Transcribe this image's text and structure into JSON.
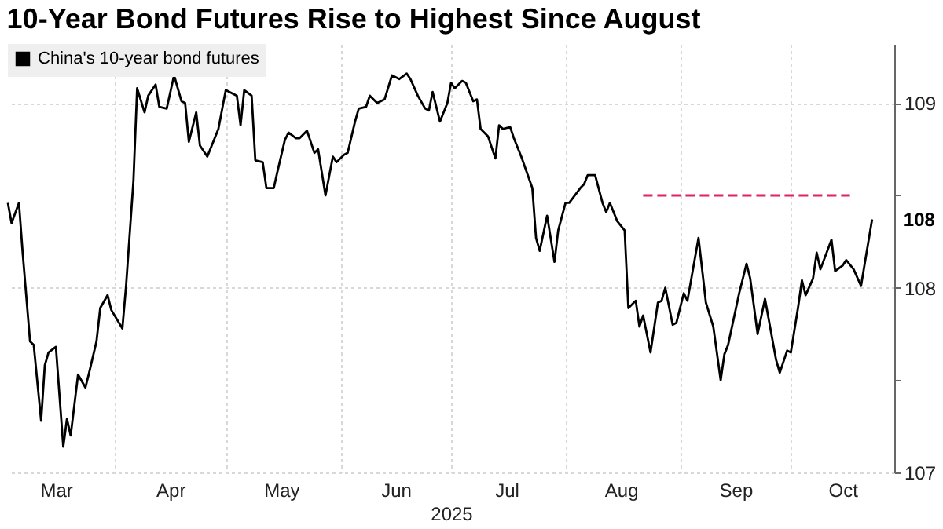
{
  "chart_data": {
    "type": "line",
    "title": "10-Year Bond Futures Rise to Highest Since August",
    "xlabel": "2025",
    "xlim": [
      "2025-03-03",
      "2025-10-29"
    ],
    "xticks": [
      {
        "value": "2025-04-01",
        "label": null
      },
      {
        "value": "2025-05-01",
        "label": null
      },
      {
        "value": "2025-06-01",
        "label": null
      },
      {
        "value": "2025-07-01",
        "label": null
      },
      {
        "value": "2025-08-01",
        "label": null
      },
      {
        "value": "2025-09-01",
        "label": null
      },
      {
        "value": "2025-10-01",
        "label": null
      },
      {
        "value": "2025-03-16",
        "label": "Mar"
      },
      {
        "value": "2025-04-16",
        "label": "Apr"
      },
      {
        "value": "2025-05-16",
        "label": "May"
      },
      {
        "value": "2025-06-16",
        "label": "Jun"
      },
      {
        "value": "2025-07-16",
        "label": "Jul"
      },
      {
        "value": "2025-08-16",
        "label": "Aug"
      },
      {
        "value": "2025-09-16",
        "label": "Sep"
      },
      {
        "value": "2025-10-15",
        "label": "Oct"
      }
    ],
    "ylim": [
      107,
      109.32
    ],
    "yticks": [
      107,
      {
        "value": 107.5,
        "label": null
      },
      108,
      {
        "value": 108.5,
        "label": null
      },
      109
    ],
    "grid": true,
    "legend": "top left",
    "series": [
      {
        "name": "China's 10-year bond futures",
        "color": "#000000",
        "x": [
          "2025-03-03",
          "2025-03-04",
          "2025-03-06",
          "2025-03-07",
          "2025-03-09",
          "2025-03-10",
          "2025-03-12",
          "2025-03-13",
          "2025-03-14",
          "2025-03-16",
          "2025-03-18",
          "2025-03-19",
          "2025-03-20",
          "2025-03-22",
          "2025-03-24",
          "2025-03-25",
          "2025-03-27",
          "2025-03-28",
          "2025-03-30",
          "2025-03-31",
          "2025-04-03",
          "2025-04-04",
          "2025-04-06",
          "2025-04-07",
          "2025-04-09",
          "2025-04-10",
          "2025-04-12",
          "2025-04-13",
          "2025-04-15",
          "2025-04-17",
          "2025-04-19",
          "2025-04-20",
          "2025-04-21",
          "2025-04-23",
          "2025-04-24",
          "2025-04-26",
          "2025-04-28",
          "2025-04-29",
          "2025-05-01",
          "2025-05-04",
          "2025-05-05",
          "2025-05-06",
          "2025-05-08",
          "2025-05-09",
          "2025-05-11",
          "2025-05-12",
          "2025-05-14",
          "2025-05-15",
          "2025-05-17",
          "2025-05-18",
          "2025-05-20",
          "2025-05-21",
          "2025-05-23",
          "2025-05-25",
          "2025-05-26",
          "2025-05-28",
          "2025-05-30",
          "2025-05-31",
          "2025-06-02",
          "2025-06-03",
          "2025-06-05",
          "2025-06-06",
          "2025-06-08",
          "2025-06-09",
          "2025-06-11",
          "2025-06-13",
          "2025-06-15",
          "2025-06-17",
          "2025-06-19",
          "2025-06-20",
          "2025-06-22",
          "2025-06-24",
          "2025-06-25",
          "2025-06-26",
          "2025-06-28",
          "2025-06-30",
          "2025-07-01",
          "2025-07-02",
          "2025-07-04",
          "2025-07-05",
          "2025-07-07",
          "2025-07-08",
          "2025-07-09",
          "2025-07-11",
          "2025-07-13",
          "2025-07-14",
          "2025-07-15",
          "2025-07-17",
          "2025-07-18",
          "2025-07-20",
          "2025-07-23",
          "2025-07-24",
          "2025-07-25",
          "2025-07-27",
          "2025-07-29",
          "2025-07-30",
          "2025-08-01",
          "2025-08-02",
          "2025-08-05",
          "2025-08-06",
          "2025-08-07",
          "2025-08-09",
          "2025-08-11",
          "2025-08-12",
          "2025-08-13",
          "2025-08-15",
          "2025-08-17",
          "2025-08-18",
          "2025-08-20",
          "2025-08-21",
          "2025-08-22",
          "2025-08-24",
          "2025-08-26",
          "2025-08-27",
          "2025-08-28",
          "2025-08-30",
          "2025-08-31",
          "2025-09-02",
          "2025-09-03",
          "2025-09-06",
          "2025-09-08",
          "2025-09-10",
          "2025-09-12",
          "2025-09-13",
          "2025-09-14",
          "2025-09-17",
          "2025-09-19",
          "2025-09-20",
          "2025-09-22",
          "2025-09-24",
          "2025-09-27",
          "2025-09-28",
          "2025-09-30",
          "2025-10-01",
          "2025-10-03",
          "2025-10-04",
          "2025-10-05",
          "2025-10-07",
          "2025-10-08",
          "2025-10-09",
          "2025-10-12",
          "2025-10-13",
          "2025-10-15",
          "2025-10-16",
          "2025-10-18",
          "2025-10-20",
          "2025-10-21",
          "2025-10-23"
        ],
        "values": [
          108.46,
          108.35,
          108.46,
          108.19,
          107.71,
          107.69,
          107.28,
          107.58,
          107.65,
          107.68,
          107.14,
          107.29,
          107.2,
          107.53,
          107.46,
          107.54,
          107.71,
          107.89,
          107.96,
          107.88,
          107.78,
          108.01,
          108.58,
          109.08,
          108.95,
          109.04,
          109.1,
          108.98,
          108.97,
          109.15,
          109.01,
          109.0,
          108.79,
          108.95,
          108.77,
          108.71,
          108.81,
          108.86,
          109.07,
          109.04,
          108.88,
          109.07,
          109.04,
          108.69,
          108.68,
          108.54,
          108.54,
          108.63,
          108.8,
          108.84,
          108.81,
          108.81,
          108.85,
          108.73,
          108.75,
          108.5,
          108.71,
          108.68,
          108.72,
          108.73,
          108.9,
          108.97,
          108.98,
          109.04,
          109.0,
          109.02,
          109.15,
          109.13,
          109.16,
          109.13,
          109.04,
          108.97,
          108.96,
          109.06,
          108.9,
          109.0,
          109.11,
          109.08,
          109.12,
          109.11,
          109.01,
          109.02,
          108.86,
          108.82,
          108.7,
          108.88,
          108.86,
          108.87,
          108.81,
          108.71,
          108.54,
          108.27,
          108.2,
          108.39,
          108.14,
          108.31,
          108.46,
          108.46,
          108.54,
          108.56,
          108.61,
          108.61,
          108.46,
          108.41,
          108.46,
          108.36,
          108.31,
          107.89,
          107.93,
          107.79,
          107.85,
          107.65,
          107.92,
          107.93,
          108.0,
          107.8,
          107.81,
          107.97,
          107.93,
          108.27,
          107.92,
          107.79,
          107.5,
          107.64,
          107.69,
          107.97,
          108.13,
          108.05,
          107.75,
          107.94,
          107.61,
          107.54,
          107.66,
          107.65,
          107.9,
          108.04,
          107.96,
          108.05,
          108.19,
          108.1,
          108.26,
          108.09,
          108.12,
          108.15,
          108.1,
          108.01,
          108.13,
          108.37
        ]
      },
      {
        "color": "#e0245e",
        "line_style": "dashed",
        "x": [
          "2025-08-22",
          "2025-10-17"
        ],
        "values": [
          108.5,
          108.5
        ]
      }
    ],
    "annotations": [
      {
        "text": "108",
        "x": "2025-10-23",
        "y": 108.37
      }
    ]
  }
}
